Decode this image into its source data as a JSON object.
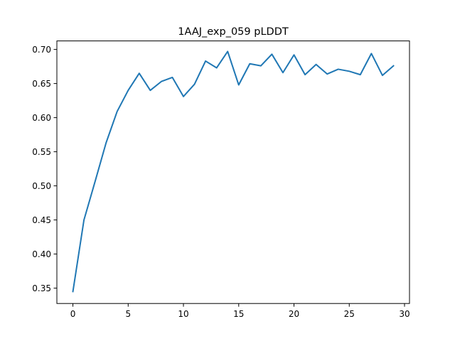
{
  "chart_data": {
    "type": "line",
    "title": "1AAJ_exp_059 pLDDT",
    "xlabel": "",
    "ylabel": "",
    "xlim": [
      -1.45,
      30.45
    ],
    "ylim": [
      0.3275,
      0.7125
    ],
    "xticks": [
      0,
      5,
      10,
      15,
      20,
      25,
      30
    ],
    "yticks": [
      0.35,
      0.4,
      0.45,
      0.5,
      0.55,
      0.6,
      0.65,
      0.7
    ],
    "ytick_labels": [
      "0.35",
      "0.40",
      "0.45",
      "0.50",
      "0.55",
      "0.60",
      "0.65",
      "0.70"
    ],
    "grid": false,
    "series": [
      {
        "color": "#1f77b4",
        "x": [
          0,
          1,
          2,
          3,
          4,
          5,
          6,
          7,
          8,
          9,
          10,
          11,
          12,
          13,
          14,
          15,
          16,
          17,
          18,
          19,
          20,
          21,
          22,
          23,
          24,
          25,
          26,
          27,
          28,
          29
        ],
        "values": [
          0.345,
          0.45,
          0.506,
          0.563,
          0.609,
          0.64,
          0.665,
          0.64,
          0.653,
          0.659,
          0.631,
          0.649,
          0.683,
          0.673,
          0.697,
          0.648,
          0.679,
          0.676,
          0.693,
          0.666,
          0.692,
          0.663,
          0.678,
          0.664,
          0.671,
          0.668,
          0.663,
          0.694,
          0.662,
          0.676
        ]
      }
    ]
  }
}
